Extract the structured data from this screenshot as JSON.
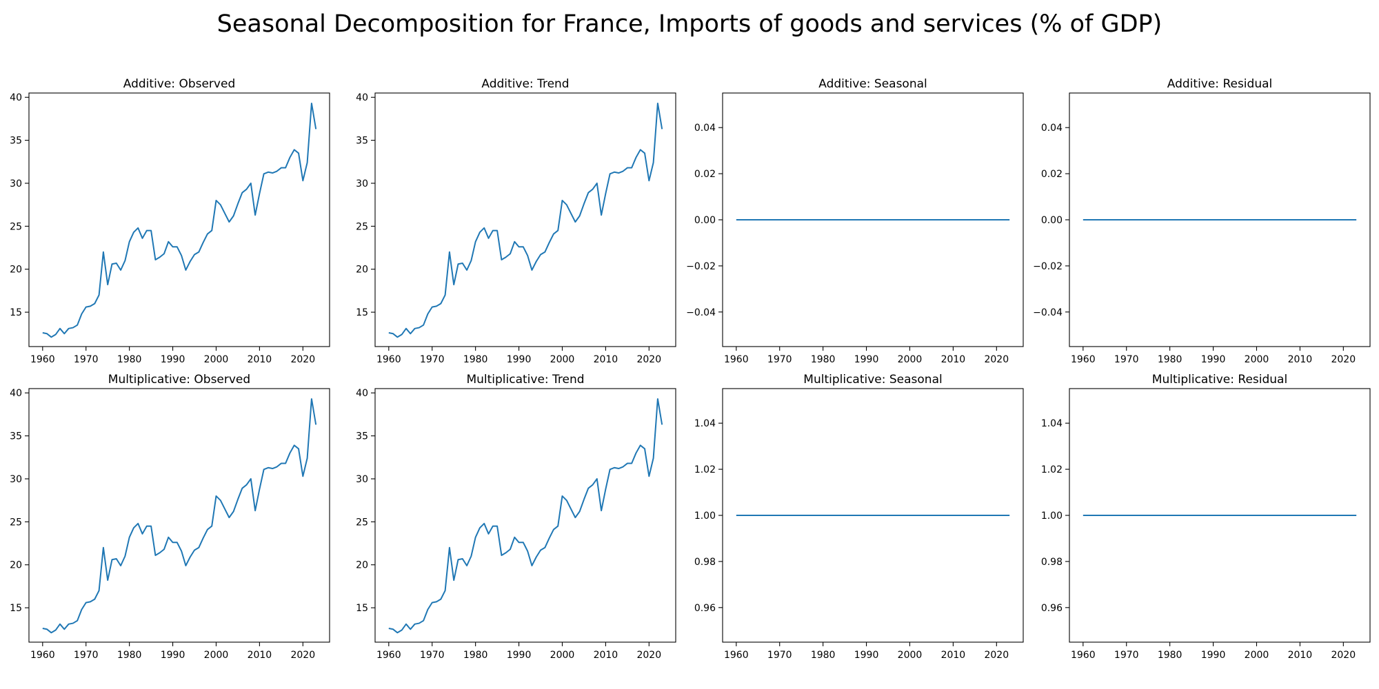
{
  "title": "Seasonal Decomposition for France, Imports of goods and services (% of GDP)",
  "colors": {
    "line": "#1f77b4",
    "axes": "#000000",
    "background": "#ffffff"
  },
  "chart_data": [
    {
      "type": "line",
      "title": "Additive: Observed",
      "x": [
        1960,
        1961,
        1962,
        1963,
        1964,
        1965,
        1966,
        1967,
        1968,
        1969,
        1970,
        1971,
        1972,
        1973,
        1974,
        1975,
        1976,
        1977,
        1978,
        1979,
        1980,
        1981,
        1982,
        1983,
        1984,
        1985,
        1986,
        1987,
        1988,
        1989,
        1990,
        1991,
        1992,
        1993,
        1994,
        1995,
        1996,
        1997,
        1998,
        1999,
        2000,
        2001,
        2002,
        2003,
        2004,
        2005,
        2006,
        2007,
        2008,
        2009,
        2010,
        2011,
        2012,
        2013,
        2014,
        2015,
        2016,
        2017,
        2018,
        2019,
        2020,
        2021,
        2022,
        2023
      ],
      "values": [
        12.6,
        12.5,
        12.1,
        12.4,
        13.1,
        12.5,
        13.1,
        13.2,
        13.5,
        14.8,
        15.6,
        15.7,
        16.0,
        17.0,
        22.0,
        18.2,
        20.6,
        20.7,
        19.9,
        21.0,
        23.2,
        24.3,
        24.8,
        23.6,
        24.5,
        24.5,
        21.1,
        21.4,
        21.8,
        23.2,
        22.6,
        22.6,
        21.6,
        19.9,
        20.9,
        21.7,
        22.0,
        23.1,
        24.1,
        24.5,
        28.0,
        27.5,
        26.5,
        25.5,
        26.2,
        27.6,
        28.9,
        29.3,
        30.0,
        26.3,
        28.8,
        31.1,
        31.3,
        31.2,
        31.4,
        31.8,
        31.8,
        33.0,
        33.9,
        33.5,
        30.3,
        32.4,
        39.3,
        36.3
      ],
      "ylim": [
        11.0,
        40.5
      ],
      "xlim": [
        1956.85,
        2026.15
      ],
      "yticks": [
        15,
        20,
        25,
        30,
        35,
        40
      ],
      "ytick_labels": [
        "15",
        "20",
        "25",
        "30",
        "35",
        "40"
      ],
      "xticks": [
        1960,
        1970,
        1980,
        1990,
        2000,
        2010,
        2020
      ],
      "xtick_labels": [
        "1960",
        "1970",
        "1980",
        "1990",
        "2000",
        "2010",
        "2020"
      ],
      "grid": false
    },
    {
      "type": "line",
      "title": "Additive: Trend",
      "x": [
        1960,
        1961,
        1962,
        1963,
        1964,
        1965,
        1966,
        1967,
        1968,
        1969,
        1970,
        1971,
        1972,
        1973,
        1974,
        1975,
        1976,
        1977,
        1978,
        1979,
        1980,
        1981,
        1982,
        1983,
        1984,
        1985,
        1986,
        1987,
        1988,
        1989,
        1990,
        1991,
        1992,
        1993,
        1994,
        1995,
        1996,
        1997,
        1998,
        1999,
        2000,
        2001,
        2002,
        2003,
        2004,
        2005,
        2006,
        2007,
        2008,
        2009,
        2010,
        2011,
        2012,
        2013,
        2014,
        2015,
        2016,
        2017,
        2018,
        2019,
        2020,
        2021,
        2022,
        2023
      ],
      "values": [
        12.6,
        12.5,
        12.1,
        12.4,
        13.1,
        12.5,
        13.1,
        13.2,
        13.5,
        14.8,
        15.6,
        15.7,
        16.0,
        17.0,
        22.0,
        18.2,
        20.6,
        20.7,
        19.9,
        21.0,
        23.2,
        24.3,
        24.8,
        23.6,
        24.5,
        24.5,
        21.1,
        21.4,
        21.8,
        23.2,
        22.6,
        22.6,
        21.6,
        19.9,
        20.9,
        21.7,
        22.0,
        23.1,
        24.1,
        24.5,
        28.0,
        27.5,
        26.5,
        25.5,
        26.2,
        27.6,
        28.9,
        29.3,
        30.0,
        26.3,
        28.8,
        31.1,
        31.3,
        31.2,
        31.4,
        31.8,
        31.8,
        33.0,
        33.9,
        33.5,
        30.3,
        32.4,
        39.3,
        36.3
      ],
      "ylim": [
        11.0,
        40.5
      ],
      "xlim": [
        1956.85,
        2026.15
      ],
      "yticks": [
        15,
        20,
        25,
        30,
        35,
        40
      ],
      "ytick_labels": [
        "15",
        "20",
        "25",
        "30",
        "35",
        "40"
      ],
      "xticks": [
        1960,
        1970,
        1980,
        1990,
        2000,
        2010,
        2020
      ],
      "xtick_labels": [
        "1960",
        "1970",
        "1980",
        "1990",
        "2000",
        "2010",
        "2020"
      ],
      "grid": false
    },
    {
      "type": "line",
      "title": "Additive: Seasonal",
      "x": [
        1960,
        2023
      ],
      "values": [
        0.0,
        0.0
      ],
      "ylim": [
        -0.055,
        0.055
      ],
      "xlim": [
        1956.85,
        2026.15
      ],
      "yticks": [
        -0.04,
        -0.02,
        0.0,
        0.02,
        0.04
      ],
      "ytick_labels": [
        "−0.04",
        "−0.02",
        "0.00",
        "0.02",
        "0.04"
      ],
      "xticks": [
        1960,
        1970,
        1980,
        1990,
        2000,
        2010,
        2020
      ],
      "xtick_labels": [
        "1960",
        "1970",
        "1980",
        "1990",
        "2000",
        "2010",
        "2020"
      ],
      "grid": false
    },
    {
      "type": "line",
      "title": "Additive: Residual",
      "x": [
        1960,
        2023
      ],
      "values": [
        0.0,
        0.0
      ],
      "ylim": [
        -0.055,
        0.055
      ],
      "xlim": [
        1956.85,
        2026.15
      ],
      "yticks": [
        -0.04,
        -0.02,
        0.0,
        0.02,
        0.04
      ],
      "ytick_labels": [
        "−0.04",
        "−0.02",
        "0.00",
        "0.02",
        "0.04"
      ],
      "xticks": [
        1960,
        1970,
        1980,
        1990,
        2000,
        2010,
        2020
      ],
      "xtick_labels": [
        "1960",
        "1970",
        "1980",
        "1990",
        "2000",
        "2010",
        "2020"
      ],
      "grid": false
    },
    {
      "type": "line",
      "title": "Multiplicative: Observed",
      "x": [
        1960,
        1961,
        1962,
        1963,
        1964,
        1965,
        1966,
        1967,
        1968,
        1969,
        1970,
        1971,
        1972,
        1973,
        1974,
        1975,
        1976,
        1977,
        1978,
        1979,
        1980,
        1981,
        1982,
        1983,
        1984,
        1985,
        1986,
        1987,
        1988,
        1989,
        1990,
        1991,
        1992,
        1993,
        1994,
        1995,
        1996,
        1997,
        1998,
        1999,
        2000,
        2001,
        2002,
        2003,
        2004,
        2005,
        2006,
        2007,
        2008,
        2009,
        2010,
        2011,
        2012,
        2013,
        2014,
        2015,
        2016,
        2017,
        2018,
        2019,
        2020,
        2021,
        2022,
        2023
      ],
      "values": [
        12.6,
        12.5,
        12.1,
        12.4,
        13.1,
        12.5,
        13.1,
        13.2,
        13.5,
        14.8,
        15.6,
        15.7,
        16.0,
        17.0,
        22.0,
        18.2,
        20.6,
        20.7,
        19.9,
        21.0,
        23.2,
        24.3,
        24.8,
        23.6,
        24.5,
        24.5,
        21.1,
        21.4,
        21.8,
        23.2,
        22.6,
        22.6,
        21.6,
        19.9,
        20.9,
        21.7,
        22.0,
        23.1,
        24.1,
        24.5,
        28.0,
        27.5,
        26.5,
        25.5,
        26.2,
        27.6,
        28.9,
        29.3,
        30.0,
        26.3,
        28.8,
        31.1,
        31.3,
        31.2,
        31.4,
        31.8,
        31.8,
        33.0,
        33.9,
        33.5,
        30.3,
        32.4,
        39.3,
        36.3
      ],
      "ylim": [
        11.0,
        40.5
      ],
      "xlim": [
        1956.85,
        2026.15
      ],
      "yticks": [
        15,
        20,
        25,
        30,
        35,
        40
      ],
      "ytick_labels": [
        "15",
        "20",
        "25",
        "30",
        "35",
        "40"
      ],
      "xticks": [
        1960,
        1970,
        1980,
        1990,
        2000,
        2010,
        2020
      ],
      "xtick_labels": [
        "1960",
        "1970",
        "1980",
        "1990",
        "2000",
        "2010",
        "2020"
      ],
      "grid": false
    },
    {
      "type": "line",
      "title": "Multiplicative: Trend",
      "x": [
        1960,
        1961,
        1962,
        1963,
        1964,
        1965,
        1966,
        1967,
        1968,
        1969,
        1970,
        1971,
        1972,
        1973,
        1974,
        1975,
        1976,
        1977,
        1978,
        1979,
        1980,
        1981,
        1982,
        1983,
        1984,
        1985,
        1986,
        1987,
        1988,
        1989,
        1990,
        1991,
        1992,
        1993,
        1994,
        1995,
        1996,
        1997,
        1998,
        1999,
        2000,
        2001,
        2002,
        2003,
        2004,
        2005,
        2006,
        2007,
        2008,
        2009,
        2010,
        2011,
        2012,
        2013,
        2014,
        2015,
        2016,
        2017,
        2018,
        2019,
        2020,
        2021,
        2022,
        2023
      ],
      "values": [
        12.6,
        12.5,
        12.1,
        12.4,
        13.1,
        12.5,
        13.1,
        13.2,
        13.5,
        14.8,
        15.6,
        15.7,
        16.0,
        17.0,
        22.0,
        18.2,
        20.6,
        20.7,
        19.9,
        21.0,
        23.2,
        24.3,
        24.8,
        23.6,
        24.5,
        24.5,
        21.1,
        21.4,
        21.8,
        23.2,
        22.6,
        22.6,
        21.6,
        19.9,
        20.9,
        21.7,
        22.0,
        23.1,
        24.1,
        24.5,
        28.0,
        27.5,
        26.5,
        25.5,
        26.2,
        27.6,
        28.9,
        29.3,
        30.0,
        26.3,
        28.8,
        31.1,
        31.3,
        31.2,
        31.4,
        31.8,
        31.8,
        33.0,
        33.9,
        33.5,
        30.3,
        32.4,
        39.3,
        36.3
      ],
      "ylim": [
        11.0,
        40.5
      ],
      "xlim": [
        1956.85,
        2026.15
      ],
      "yticks": [
        15,
        20,
        25,
        30,
        35,
        40
      ],
      "ytick_labels": [
        "15",
        "20",
        "25",
        "30",
        "35",
        "40"
      ],
      "xticks": [
        1960,
        1970,
        1980,
        1990,
        2000,
        2010,
        2020
      ],
      "xtick_labels": [
        "1960",
        "1970",
        "1980",
        "1990",
        "2000",
        "2010",
        "2020"
      ],
      "grid": false
    },
    {
      "type": "line",
      "title": "Multiplicative: Seasonal",
      "x": [
        1960,
        2023
      ],
      "values": [
        1.0,
        1.0
      ],
      "ylim": [
        0.945,
        1.055
      ],
      "xlim": [
        1956.85,
        2026.15
      ],
      "yticks": [
        0.96,
        0.98,
        1.0,
        1.02,
        1.04
      ],
      "ytick_labels": [
        "0.96",
        "0.98",
        "1.00",
        "1.02",
        "1.04"
      ],
      "xticks": [
        1960,
        1970,
        1980,
        1990,
        2000,
        2010,
        2020
      ],
      "xtick_labels": [
        "1960",
        "1970",
        "1980",
        "1990",
        "2000",
        "2010",
        "2020"
      ],
      "grid": false
    },
    {
      "type": "line",
      "title": "Multiplicative: Residual",
      "x": [
        1960,
        2023
      ],
      "values": [
        1.0,
        1.0
      ],
      "ylim": [
        0.945,
        1.055
      ],
      "xlim": [
        1956.85,
        2026.15
      ],
      "yticks": [
        0.96,
        0.98,
        1.0,
        1.02,
        1.04
      ],
      "ytick_labels": [
        "0.96",
        "0.98",
        "1.00",
        "1.02",
        "1.04"
      ],
      "xticks": [
        1960,
        1970,
        1980,
        1990,
        2000,
        2010,
        2020
      ],
      "xtick_labels": [
        "1960",
        "1970",
        "1980",
        "1990",
        "2000",
        "2010",
        "2020"
      ],
      "grid": false
    }
  ]
}
